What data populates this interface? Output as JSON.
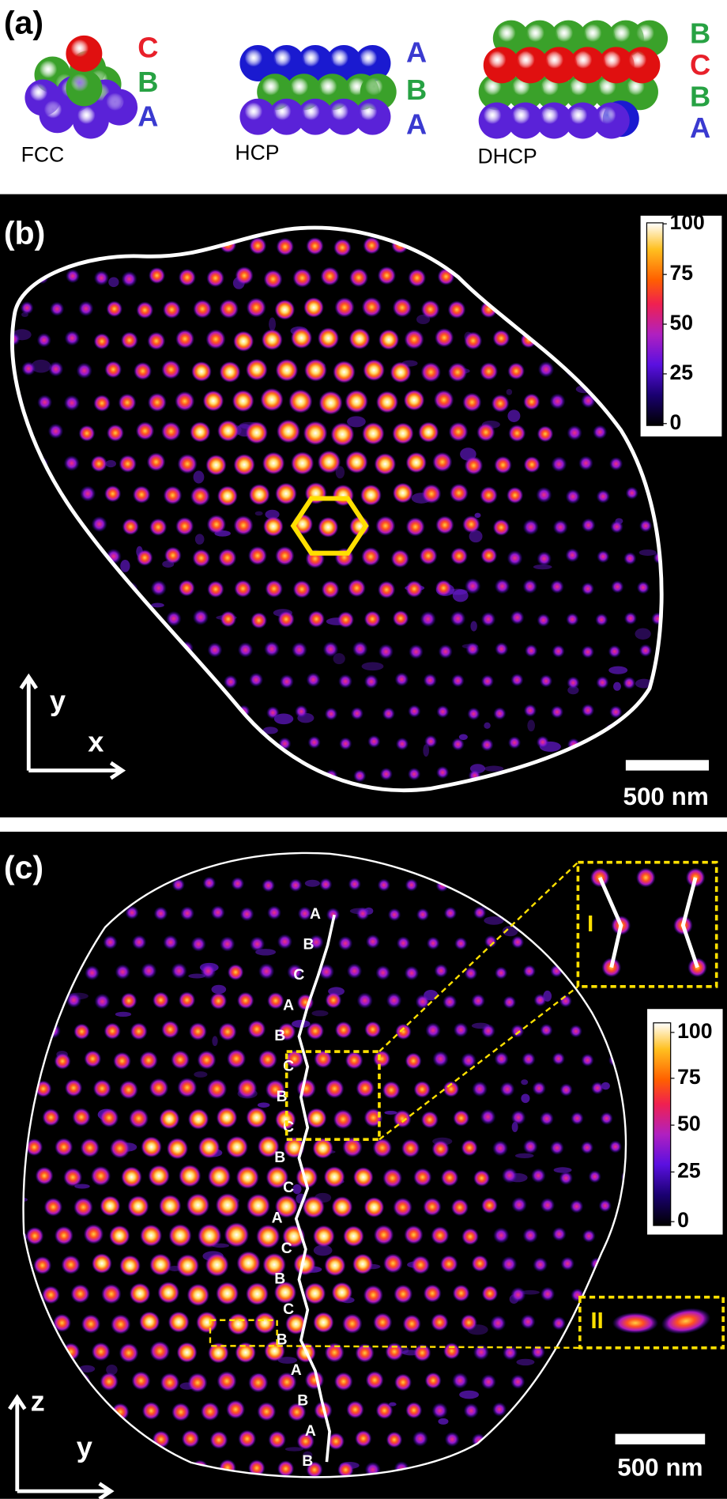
{
  "panel_a": {
    "label": "(a)",
    "structures": [
      {
        "name": "FCC",
        "layers": [
          {
            "letter": "C",
            "color": "#e8202a"
          },
          {
            "letter": "B",
            "color": "#27a243"
          },
          {
            "letter": "A",
            "color": "#3a3ad0"
          }
        ]
      },
      {
        "name": "HCP",
        "layers": [
          {
            "letter": "A",
            "color": "#3a3ad0"
          },
          {
            "letter": "B",
            "color": "#27a243"
          },
          {
            "letter": "A",
            "color": "#3a3ad0"
          }
        ]
      },
      {
        "name": "DHCP",
        "layers": [
          {
            "letter": "B",
            "color": "#27a243"
          },
          {
            "letter": "C",
            "color": "#e8202a"
          },
          {
            "letter": "B",
            "color": "#27a243"
          },
          {
            "letter": "A",
            "color": "#3a3ad0"
          }
        ]
      }
    ]
  },
  "panel_b": {
    "label": "(b)",
    "colorbar_ticks": [
      100,
      75,
      50,
      25,
      0
    ],
    "axes": [
      "y",
      "x"
    ],
    "scale_bar": "500 nm"
  },
  "panel_c": {
    "label": "(c)",
    "stacking": [
      "A",
      "B",
      "C",
      "A",
      "B",
      "C",
      "B",
      "C",
      "B",
      "C",
      "A",
      "C",
      "B",
      "C",
      "B",
      "A",
      "B",
      "A",
      "B"
    ],
    "insets": [
      "I",
      "II"
    ],
    "colorbar_ticks": [
      100,
      75,
      50,
      25,
      0
    ],
    "axes": [
      "z",
      "y"
    ],
    "scale_bar": "500 nm"
  }
}
